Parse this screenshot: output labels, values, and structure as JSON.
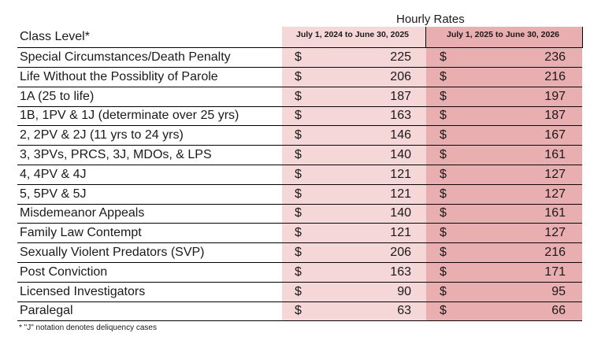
{
  "super_header": "Hourly Rates",
  "class_header": "Class Level*",
  "col1_header": "July 1, 2024 to June 30, 2025",
  "col2_header": "July 1, 2025 to June 30, 2026",
  "currency": "$",
  "rows": [
    {
      "label": "Special Circumstances/Death Penalty",
      "v1": "225",
      "v2": "236"
    },
    {
      "label": "Life Without the Possiblity of Parole",
      "v1": "206",
      "v2": "216"
    },
    {
      "label": "1A (25 to life)",
      "v1": "187",
      "v2": "197"
    },
    {
      "label": "1B, 1PV & 1J (determinate over 25 yrs)",
      "v1": "163",
      "v2": "187"
    },
    {
      "label": "2, 2PV & 2J (11 yrs to 24 yrs)",
      "v1": "146",
      "v2": "167"
    },
    {
      "label": "3, 3PVs, PRCS, 3J, MDOs, & LPS",
      "v1": "140",
      "v2": "161"
    },
    {
      "label": "4, 4PV & 4J",
      "v1": "121",
      "v2": "127"
    },
    {
      "label": "5, 5PV & 5J",
      "v1": "121",
      "v2": "127"
    },
    {
      "label": "Misdemeanor Appeals",
      "v1": "140",
      "v2": "161"
    },
    {
      "label": "Family Law Contempt",
      "v1": "121",
      "v2": "127"
    },
    {
      "label": "Sexually Violent Predators (SVP)",
      "v1": "206",
      "v2": "216"
    },
    {
      "label": "Post Conviction",
      "v1": "163",
      "v2": "171"
    },
    {
      "label": "Licensed Investigators",
      "v1": "90",
      "v2": "95"
    },
    {
      "label": "Paralegal",
      "v1": "63",
      "v2": "66"
    }
  ],
  "footnote": "* \"J\" notation  denotes deliquency cases"
}
